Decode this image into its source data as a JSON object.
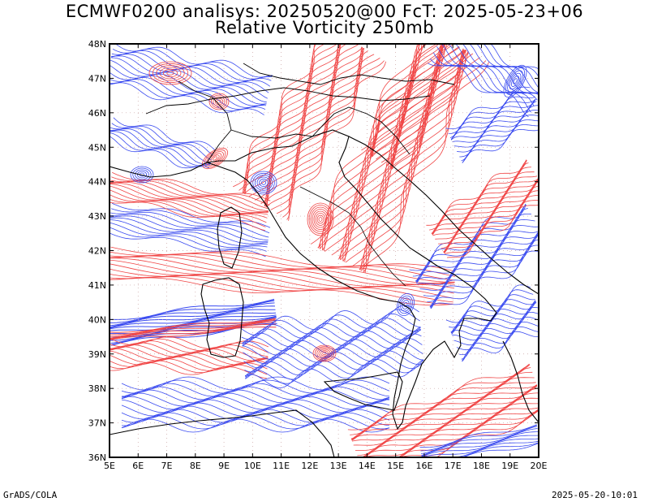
{
  "title_line1": "ECMWF0200 analisys: 20250520@00 FcT: 2025-05-23+06",
  "title_line2": "Relative Vorticity 250mb",
  "footer_left": "GrADS/COLA",
  "footer_right": "2025-05-20-10:01",
  "colors": {
    "positive_contours": "#f04545",
    "negative_contours": "#3a4bf0",
    "coastline": "#000000",
    "gridlines": "#c8a0a0"
  },
  "map": {
    "projection": "lat-lon",
    "lon_range": [
      5,
      20
    ],
    "lat_range": [
      36,
      48
    ],
    "lon_ticks": [
      "5E",
      "6E",
      "7E",
      "8E",
      "9E",
      "10E",
      "11E",
      "12E",
      "13E",
      "14E",
      "15E",
      "16E",
      "17E",
      "18E",
      "19E",
      "20E"
    ],
    "lat_ticks": [
      "36N",
      "37N",
      "38N",
      "39N",
      "40N",
      "41N",
      "42N",
      "43N",
      "44N",
      "45N",
      "46N",
      "47N",
      "48N"
    ],
    "grid": true
  }
}
